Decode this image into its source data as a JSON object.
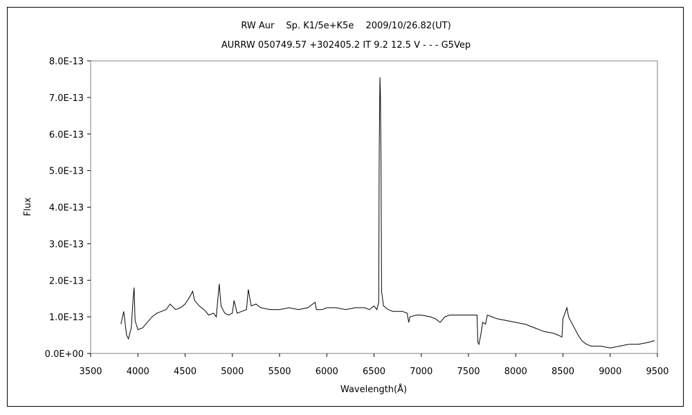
{
  "chart_data": {
    "type": "line",
    "title": "RW Aur　 Sp. K1/5e+K5e　 2009/10/26.82(UT)",
    "subtitle": "AURRW 050749.57 +302405.2 IT 9.2 12.5 V - - - G5Vep",
    "xlabel": "Wavelength(Å)",
    "ylabel": "Flux",
    "xlim": [
      3500,
      9500
    ],
    "ylim": [
      0,
      8e-13
    ],
    "grid": false,
    "legend": "none",
    "x_ticks": [
      3500,
      4000,
      4500,
      5000,
      5500,
      6000,
      6500,
      7000,
      7500,
      8000,
      8500,
      9000,
      9500
    ],
    "x_tick_labels": [
      "3500",
      "4000",
      "4500",
      "5000",
      "5500",
      "6000",
      "6500",
      "7000",
      "7500",
      "8000",
      "8500",
      "9000",
      "9500"
    ],
    "y_ticks": [
      0,
      1e-13,
      2e-13,
      3e-13,
      4e-13,
      5e-13,
      6e-13,
      7e-13,
      8e-13
    ],
    "y_tick_labels": [
      "0.0E+00",
      "1.0E-13",
      "2.0E-13",
      "3.0E-13",
      "4.0E-13",
      "5.0E-13",
      "6.0E-13",
      "7.0E-13",
      "8.0E-13"
    ],
    "line_color": "#000000",
    "series": [
      {
        "x": [
          3820,
          3850,
          3880,
          3900,
          3930,
          3950,
          3960,
          3970,
          4000,
          4050,
          4100,
          4150,
          4200,
          4250,
          4300,
          4340,
          4400,
          4450,
          4500,
          4550,
          4580,
          4600,
          4650,
          4700,
          4750,
          4800,
          4830,
          4861,
          4880,
          4920,
          4960,
          5000,
          5018,
          5050,
          5100,
          5150,
          5169,
          5200,
          5250,
          5300,
          5400,
          5500,
          5600,
          5700,
          5800,
          5876,
          5890,
          5950,
          6000,
          6100,
          6200,
          6300,
          6400,
          6450,
          6500,
          6530,
          6550,
          6555,
          6563,
          6568,
          6575,
          6580,
          6600,
          6650,
          6700,
          6800,
          6850,
          6868,
          6880,
          6950,
          7000,
          7100,
          7150,
          7200,
          7250,
          7300,
          7400,
          7500,
          7590,
          7600,
          7610,
          7630,
          7650,
          7680,
          7700,
          7750,
          7800,
          7900,
          8000,
          8100,
          8200,
          8300,
          8400,
          8450,
          8490,
          8500,
          8542,
          8560,
          8600,
          8662,
          8700,
          8750,
          8800,
          8900,
          9000,
          9100,
          9200,
          9300,
          9400,
          9470
        ],
        "y": [
          8e-14,
          1.15e-13,
          5e-14,
          4e-14,
          7e-14,
          1.5e-13,
          1.8e-13,
          9e-14,
          6.5e-14,
          7e-14,
          8.5e-14,
          1e-13,
          1.1e-13,
          1.15e-13,
          1.2e-13,
          1.35e-13,
          1.2e-13,
          1.25e-13,
          1.35e-13,
          1.55e-13,
          1.7e-13,
          1.45e-13,
          1.3e-13,
          1.2e-13,
          1.05e-13,
          1.1e-13,
          1e-13,
          1.9e-13,
          1.3e-13,
          1.1e-13,
          1.05e-13,
          1.1e-13,
          1.45e-13,
          1.1e-13,
          1.15e-13,
          1.2e-13,
          1.75e-13,
          1.3e-13,
          1.35e-13,
          1.25e-13,
          1.2e-13,
          1.2e-13,
          1.25e-13,
          1.2e-13,
          1.25e-13,
          1.4e-13,
          1.2e-13,
          1.2e-13,
          1.25e-13,
          1.25e-13,
          1.2e-13,
          1.25e-13,
          1.25e-13,
          1.2e-13,
          1.3e-13,
          1.2e-13,
          1.4e-13,
          5.5e-13,
          7.55e-13,
          7e-13,
          5e-13,
          1.7e-13,
          1.3e-13,
          1.2e-13,
          1.15e-13,
          1.15e-13,
          1.1e-13,
          8.5e-14,
          1e-13,
          1.05e-13,
          1.05e-13,
          1e-13,
          9.5e-14,
          8.5e-14,
          1e-13,
          1.05e-13,
          1.05e-13,
          1.05e-13,
          1.05e-13,
          3e-14,
          2.5e-14,
          5e-14,
          8.5e-14,
          8e-14,
          1.05e-13,
          1e-13,
          9.5e-14,
          9e-14,
          8.5e-14,
          8e-14,
          7e-14,
          6e-14,
          5.5e-14,
          5e-14,
          4.5e-14,
          9.5e-14,
          1.25e-13,
          1e-13,
          8e-14,
          5e-14,
          3.5e-14,
          2.5e-14,
          2e-14,
          2e-14,
          1.5e-14,
          2e-14,
          2.5e-14,
          2.5e-14,
          3e-14,
          3.5e-14
        ]
      }
    ]
  }
}
